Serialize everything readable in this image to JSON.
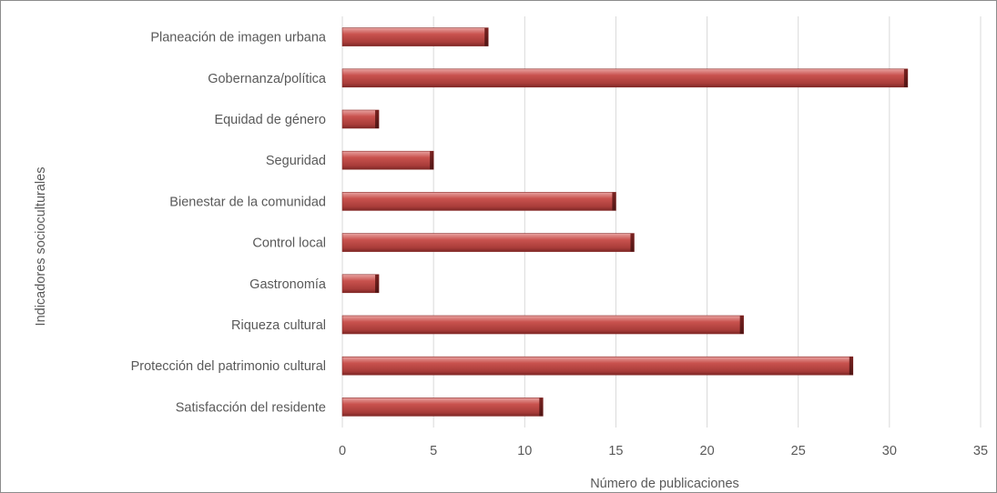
{
  "chart_data": {
    "type": "bar",
    "orientation": "horizontal",
    "categories": [
      "Planeación de imagen urbana",
      "Gobernanza/política",
      "Equidad de género",
      "Seguridad",
      "Bienestar de la comunidad",
      "Control local",
      "Gastronomía",
      "Riqueza cultural",
      "Protección del patrimonio cultural",
      "Satisfacción del residente"
    ],
    "values": [
      8,
      31,
      2,
      5,
      15,
      16,
      2,
      22,
      28,
      11
    ],
    "xlabel": "Número de publicaciones",
    "ylabel": "Indicadores socioculturales",
    "xlim": [
      0,
      35
    ],
    "xticks": [
      0,
      5,
      10,
      15,
      20,
      25,
      30,
      35
    ],
    "grid": "vertical",
    "bar_color": "#c0504d",
    "bar_style": "3d-shaded"
  }
}
